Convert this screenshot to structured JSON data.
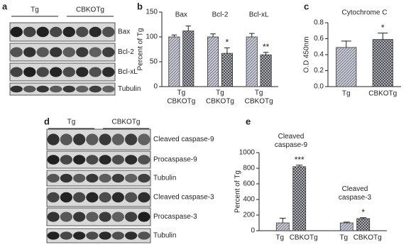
{
  "panel_labels": [
    "a",
    "b",
    "c",
    "d",
    "e"
  ],
  "blots": [
    {
      "groups": [
        "Tg",
        "CBKOTg"
      ],
      "rows": [
        "Bax",
        "Bcl-2",
        "Bcl-xL",
        "Tubulin"
      ]
    },
    {
      "groups": [
        "Tg",
        "CBKOTg"
      ],
      "rows": [
        "Cleaved caspase-9",
        "Procaspase-9",
        "Tubulin",
        "Cleaved caspase-3",
        "Procaspase-3",
        "Tubulin"
      ]
    }
  ],
  "chart_data": [
    {
      "type": "bar",
      "ylabel": "Percent of Tg",
      "categories": [
        "Bax",
        "Bcl-2",
        "Bcl-xL"
      ],
      "series": [
        {
          "name": "Tg",
          "color": "#c9ccd8",
          "hatch": "diagonal",
          "values": [
            100,
            100,
            100
          ],
          "errors": [
            4,
            6,
            7
          ]
        },
        {
          "name": "CBKOTg",
          "color": "#c9ccd8",
          "hatch": "cross",
          "values": [
            112,
            67,
            64
          ],
          "errors": [
            10,
            11,
            5
          ],
          "annotations": [
            null,
            "*",
            "**"
          ]
        }
      ],
      "ylim": [
        0,
        150
      ],
      "yticks": [
        0,
        50,
        100,
        150
      ]
    },
    {
      "type": "bar",
      "title": "Cytochrome C",
      "ylabel": "O.D 450nm",
      "categories": [
        "Tg",
        "CBKOTg"
      ],
      "values": [
        0.49,
        0.59
      ],
      "errors": [
        0.08,
        0.08
      ],
      "annotations": [
        null,
        "*"
      ],
      "color": "#c9ccd8",
      "hatch": [
        "diagonal",
        "cross"
      ],
      "ylim": [
        0,
        0.8
      ],
      "yticks": [
        {
          "value": 0,
          "label": "0.0"
        },
        0.2,
        0.4,
        0.6,
        0.8
      ]
    },
    {
      "type": "bar",
      "ylabel": "Percent of Tg",
      "categories": [
        "Cleaved caspase-9",
        "Cleaved caspase-3"
      ],
      "series": [
        {
          "name": "Tg",
          "color": "#c9ccd8",
          "hatch": "diagonal",
          "values": [
            100,
            100
          ],
          "errors": [
            60,
            10
          ]
        },
        {
          "name": "CBKOTg",
          "color": "#c9ccd8",
          "hatch": "cross",
          "values": [
            820,
            155
          ],
          "errors": [
            20,
            12
          ],
          "annotations": [
            "***",
            "*"
          ]
        }
      ],
      "ylim": [
        0,
        1000
      ],
      "yticks": [
        0,
        200,
        400,
        600,
        800,
        1000
      ]
    }
  ]
}
